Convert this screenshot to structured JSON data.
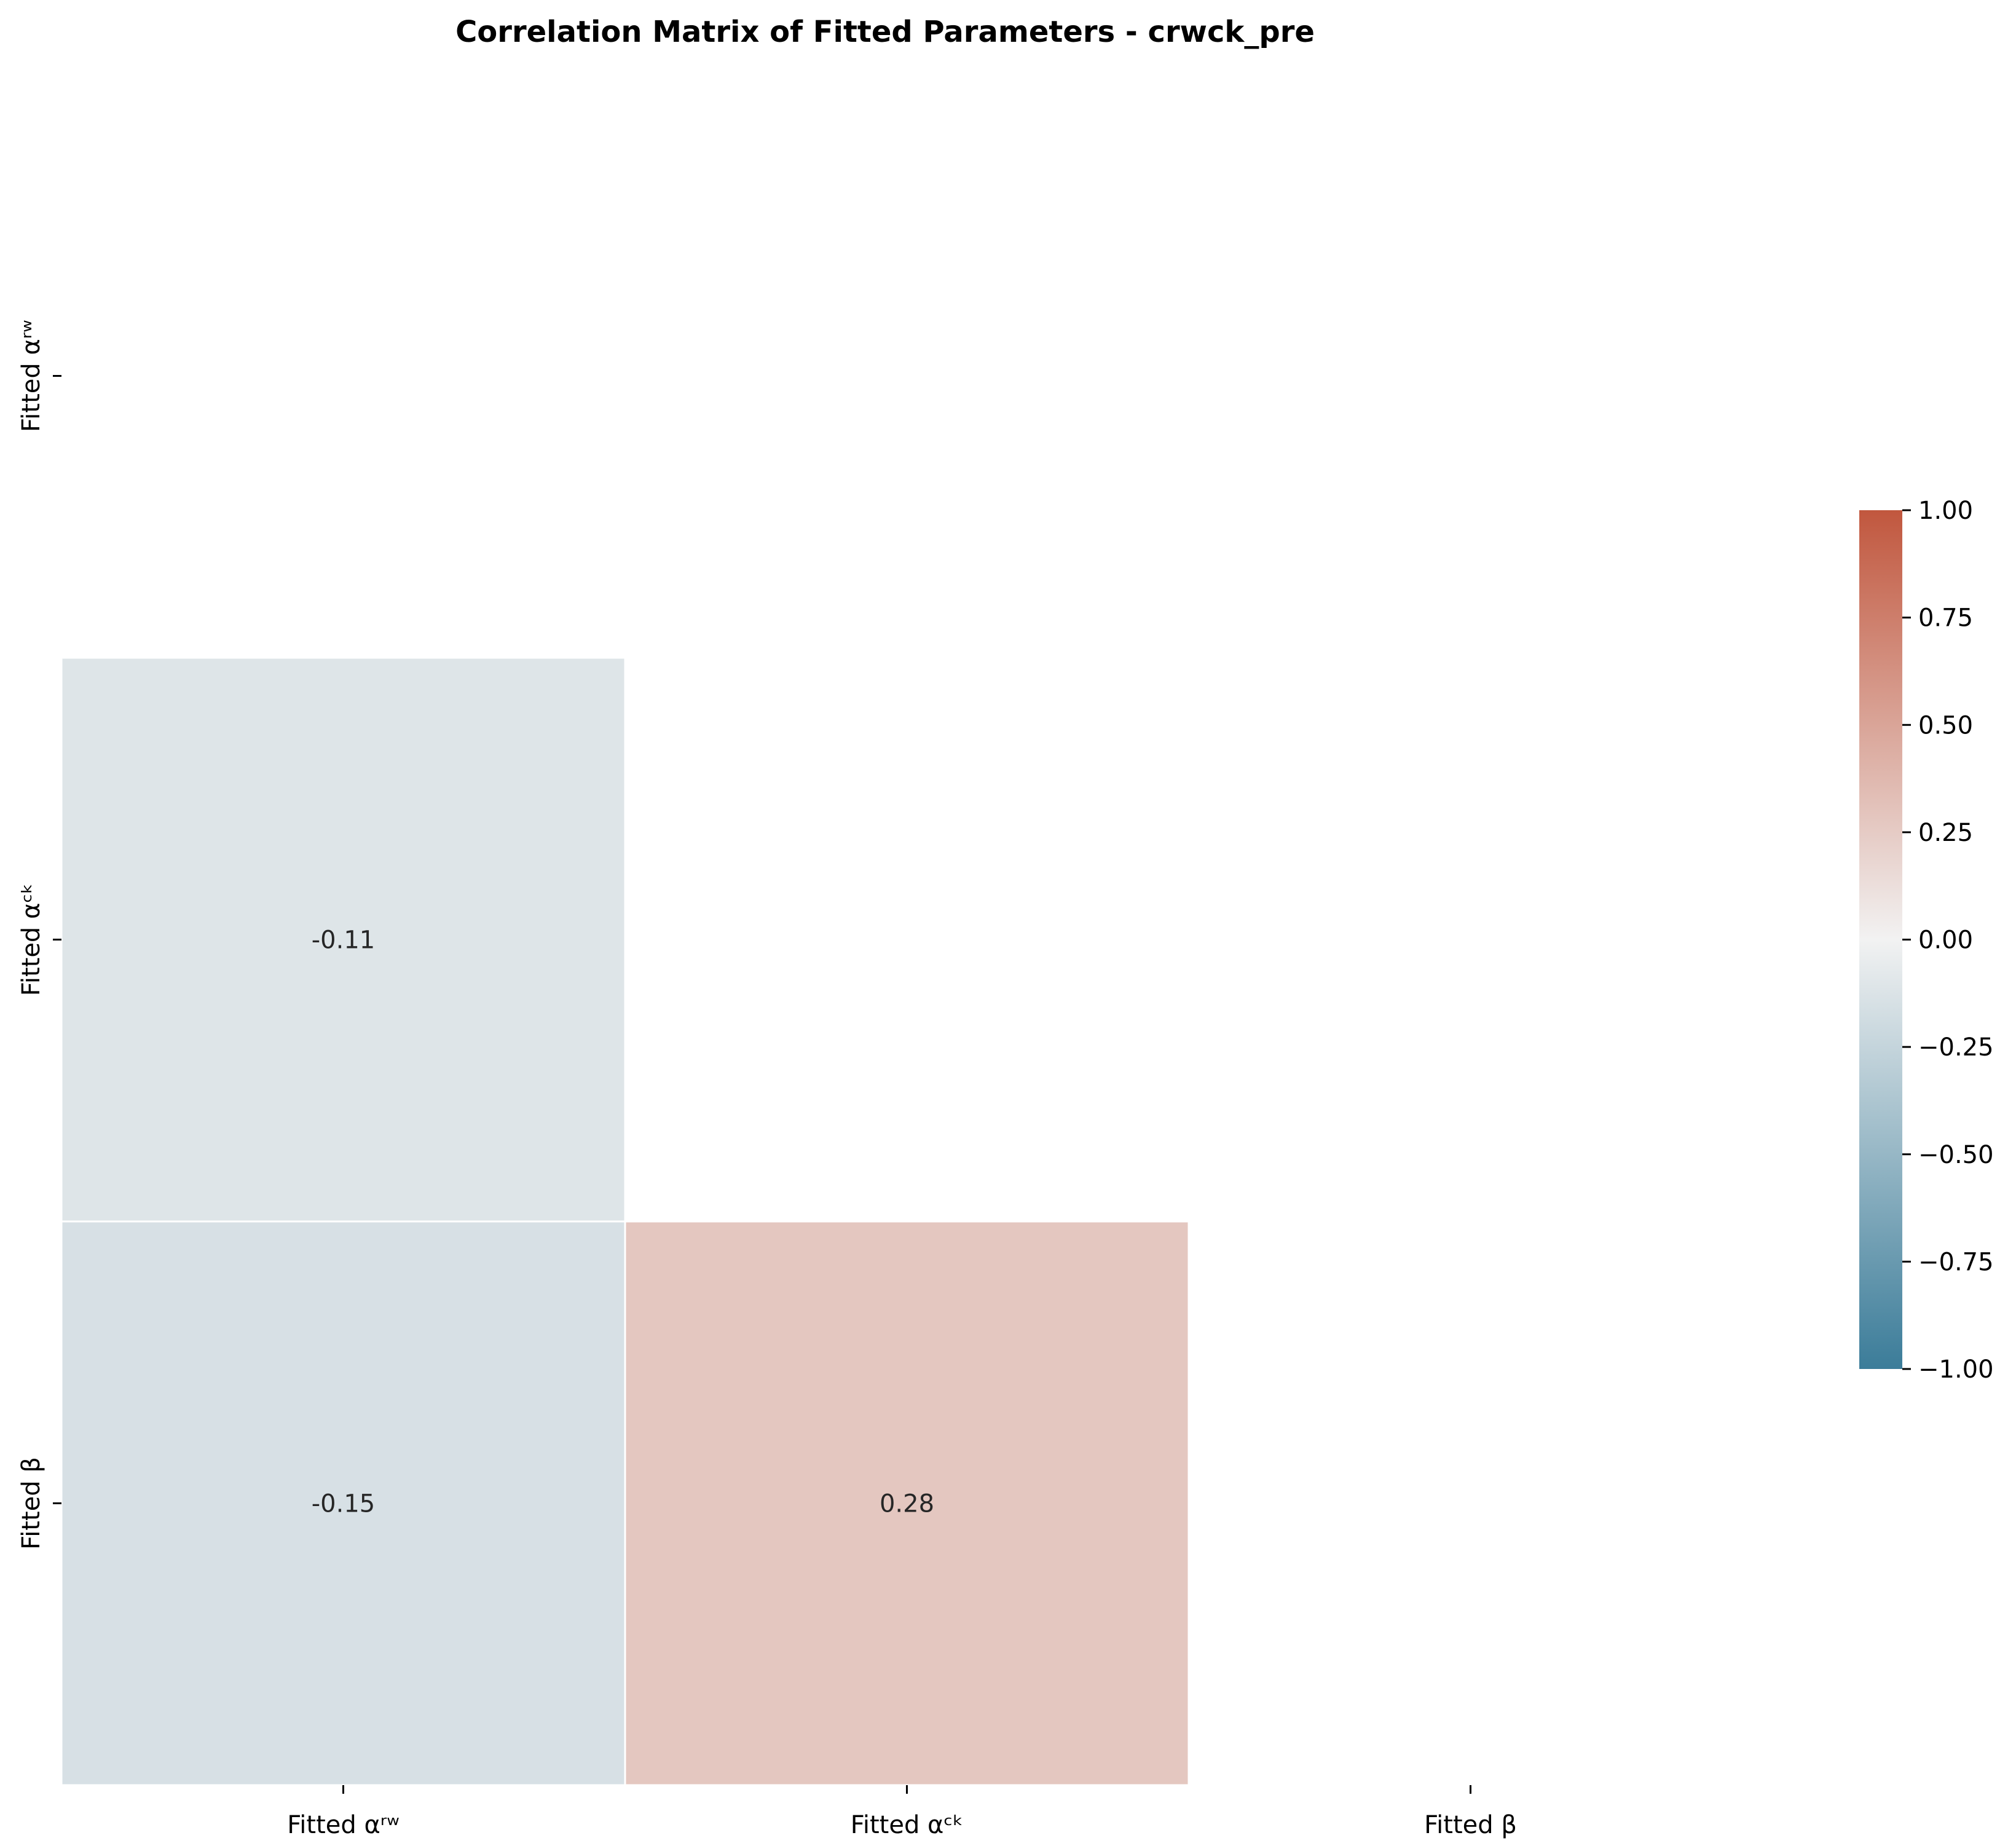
{
  "chart_data": {
    "type": "heatmap",
    "title": "Correlation Matrix of Fitted Parameters - crwck_pre",
    "row_labels": [
      "Fitted αʳʷ",
      "Fitted αᶜᵏ",
      "Fitted β"
    ],
    "column_labels": [
      "Fitted αʳʷ",
      "Fitted αᶜᵏ",
      "Fitted β"
    ],
    "mask": "upper triangle including diagonal",
    "cells": [
      {
        "row": 1,
        "col": 0,
        "value": -0.11,
        "label": "-0.11"
      },
      {
        "row": 2,
        "col": 0,
        "value": -0.15,
        "label": "-0.15"
      },
      {
        "row": 2,
        "col": 1,
        "value": 0.28,
        "label": "0.28"
      }
    ],
    "colorbar": {
      "range": [
        -1.0,
        1.0
      ],
      "ticks": [
        1.0,
        0.75,
        0.5,
        0.25,
        0.0,
        -0.25,
        -0.5,
        -0.75,
        -1.0
      ],
      "tick_labels": [
        "1.00",
        "0.75",
        "0.50",
        "0.25",
        "0.00",
        "−0.25",
        "−0.50",
        "−0.75",
        "−1.00"
      ],
      "low_color": "#3b7c99",
      "mid_color": "#f2f2f2",
      "high_color": "#c1573e"
    }
  }
}
